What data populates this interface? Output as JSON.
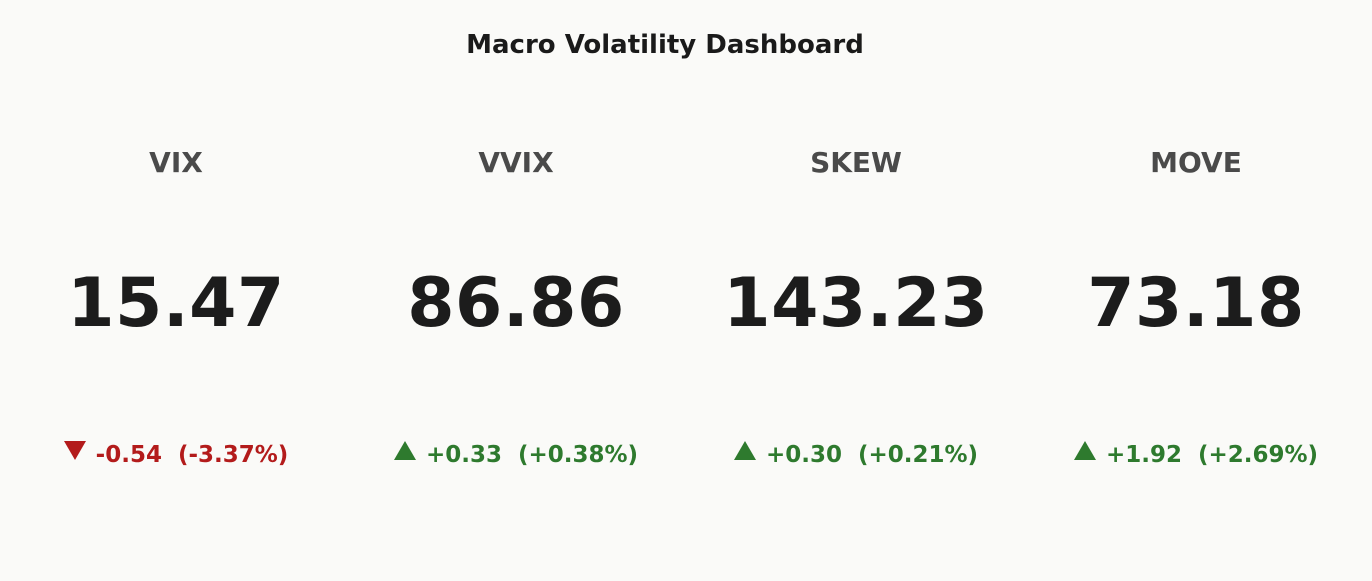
{
  "title": "Macro Volatility Dashboard",
  "colors": {
    "background": "#fafaf8",
    "up": "#2e7a2e",
    "down": "#b31b1b",
    "value": "#1c1c1c",
    "label": "#4a4a4a"
  },
  "chart_data": {
    "type": "table",
    "title": "Macro Volatility Dashboard",
    "indicators": [
      {
        "name": "VIX",
        "value": "15.47",
        "change": "-0.54",
        "change_pct": "(-3.37%)",
        "direction": "down",
        "arrow_icon": "triangle-down-icon"
      },
      {
        "name": "VVIX",
        "value": "86.86",
        "change": "+0.33",
        "change_pct": "(+0.38%)",
        "direction": "up",
        "arrow_icon": "triangle-up-icon"
      },
      {
        "name": "SKEW",
        "value": "143.23",
        "change": "+0.30",
        "change_pct": "(+0.21%)",
        "direction": "up",
        "arrow_icon": "triangle-up-icon"
      },
      {
        "name": "MOVE",
        "value": "73.18",
        "change": "+1.92",
        "change_pct": "(+2.69%)",
        "direction": "up",
        "arrow_icon": "triangle-up-icon"
      }
    ]
  }
}
